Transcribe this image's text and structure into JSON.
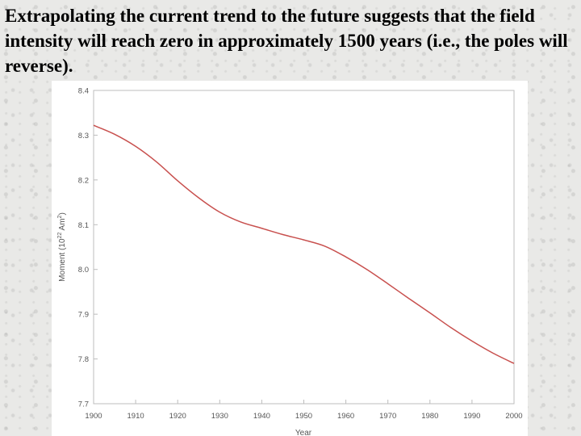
{
  "slide": {
    "title": "Extrapolating the current trend to the future suggests that the field intensity will reach zero in approximately 1500 years (i.e., the poles will reverse)."
  },
  "chart_data": {
    "type": "line",
    "title": "",
    "xlabel": "Year",
    "ylabel": "Moment (10",
    "ylabel_sup": "22",
    "ylabel_unit": " Am",
    "ylabel_sup2": "2",
    "ylabel_end": ")",
    "xlim": [
      1900,
      2000
    ],
    "ylim": [
      7.7,
      8.4
    ],
    "x_ticks": [
      "1900",
      "1910",
      "1920",
      "1930",
      "1940",
      "1950",
      "1960",
      "1970",
      "1980",
      "1990",
      "2000"
    ],
    "y_ticks": [
      "7.7",
      "7.8",
      "7.9",
      "8.0",
      "8.1",
      "8.2",
      "8.3",
      "8.4"
    ],
    "grid": false,
    "line_color": "#c8504e",
    "series": [
      {
        "x": [
          1900,
          1905,
          1910,
          1915,
          1920,
          1925,
          1930,
          1935,
          1940,
          1945,
          1950,
          1955,
          1960,
          1965,
          1970,
          1975,
          1980,
          1985,
          1990,
          1995,
          2000
        ],
        "values": [
          8.322,
          8.302,
          8.275,
          8.24,
          8.198,
          8.16,
          8.128,
          8.106,
          8.092,
          8.078,
          8.066,
          8.052,
          8.028,
          8.0,
          7.968,
          7.935,
          7.903,
          7.87,
          7.84,
          7.813,
          7.79
        ]
      }
    ]
  }
}
